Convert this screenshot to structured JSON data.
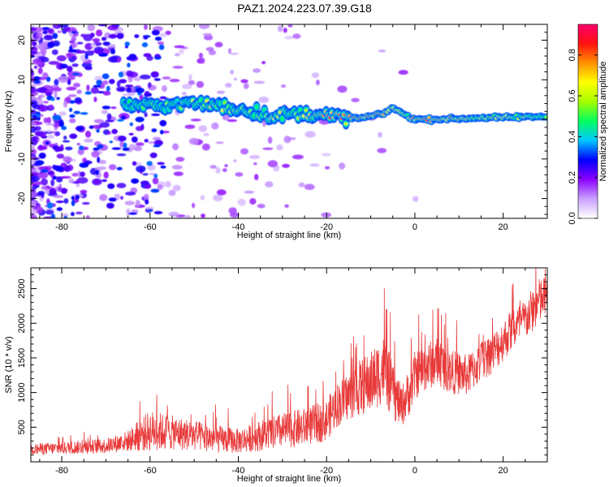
{
  "page": {
    "title": "PAZ1.2024.223.07.39.G18"
  },
  "chart_data": [
    {
      "type": "heatmap",
      "title": "",
      "xlabel": "Height of straight line (km)",
      "ylabel": "Frequency (Hz)",
      "xlim": [
        -87,
        30
      ],
      "ylim": [
        -25,
        24
      ],
      "xticks": [
        -80,
        -60,
        -40,
        -20,
        0,
        20
      ],
      "yticks": [
        -20,
        -10,
        0,
        10,
        20
      ],
      "colorbar": {
        "label": "Normalized spectral amplitude",
        "range": [
          0,
          0.95
        ],
        "ticks": [
          0.0,
          0.2,
          0.4,
          0.6,
          0.8
        ],
        "tick_labels": [
          "0.0",
          "0.2",
          "0.4",
          "0.6",
          "0.8"
        ],
        "colors": [
          "#ffffff",
          "#c9a0ff",
          "#8a00ff",
          "#0000ff",
          "#00c8ff",
          "#00ff60",
          "#a8ff00",
          "#ffff00",
          "#ff9000",
          "#ff1010",
          "#ff0070"
        ]
      },
      "ridge": {
        "x": [
          -57,
          -52,
          -47,
          -42,
          -37,
          -32,
          -27,
          -22,
          -17,
          -12,
          -7,
          -5,
          -2,
          0,
          5,
          10,
          15,
          20,
          25,
          30
        ],
        "freq": [
          3.5,
          4.0,
          3.8,
          3.0,
          2.0,
          0.8,
          1.2,
          1.5,
          0.5,
          0.3,
          1.5,
          3.0,
          1.0,
          0.0,
          0.0,
          0.2,
          0.4,
          0.5,
          0.6,
          0.7
        ],
        "amplitude": [
          0.45,
          0.5,
          0.6,
          0.55,
          0.5,
          0.6,
          0.55,
          0.7,
          0.75,
          0.85,
          0.8,
          0.7,
          0.55,
          0.85,
          0.9,
          0.7,
          0.65,
          0.6,
          0.6,
          0.55
        ]
      }
    },
    {
      "type": "line",
      "title": "",
      "xlabel": "Height of straight line (km)",
      "ylabel": "SNR (10 * v/v)",
      "xlim": [
        -87,
        30
      ],
      "ylim": [
        0,
        2800
      ],
      "xticks": [
        -80,
        -60,
        -40,
        -20,
        0,
        20
      ],
      "yticks": [
        500,
        1000,
        1500,
        2000,
        2500
      ],
      "color": "#e83a3a",
      "envelope": {
        "x": [
          -87,
          -80,
          -70,
          -65,
          -60,
          -55,
          -50,
          -45,
          -40,
          -35,
          -30,
          -25,
          -20,
          -18,
          -15,
          -13,
          -10,
          -7,
          -5,
          -3,
          -1,
          0,
          2,
          5,
          8,
          12,
          15,
          18,
          22,
          25,
          28,
          30
        ],
        "mean": [
          180,
          200,
          230,
          300,
          450,
          420,
          380,
          330,
          300,
          380,
          450,
          500,
          600,
          800,
          950,
          1050,
          1150,
          1350,
          1000,
          800,
          1050,
          1250,
          1350,
          1450,
          1300,
          1250,
          1450,
          1600,
          1900,
          2050,
          2300,
          2400
        ],
        "spread": [
          80,
          90,
          110,
          150,
          300,
          250,
          220,
          200,
          180,
          220,
          260,
          280,
          300,
          320,
          350,
          400,
          450,
          500,
          400,
          300,
          350,
          350,
          350,
          350,
          320,
          300,
          300,
          300,
          300,
          300,
          350,
          300
        ]
      }
    }
  ]
}
